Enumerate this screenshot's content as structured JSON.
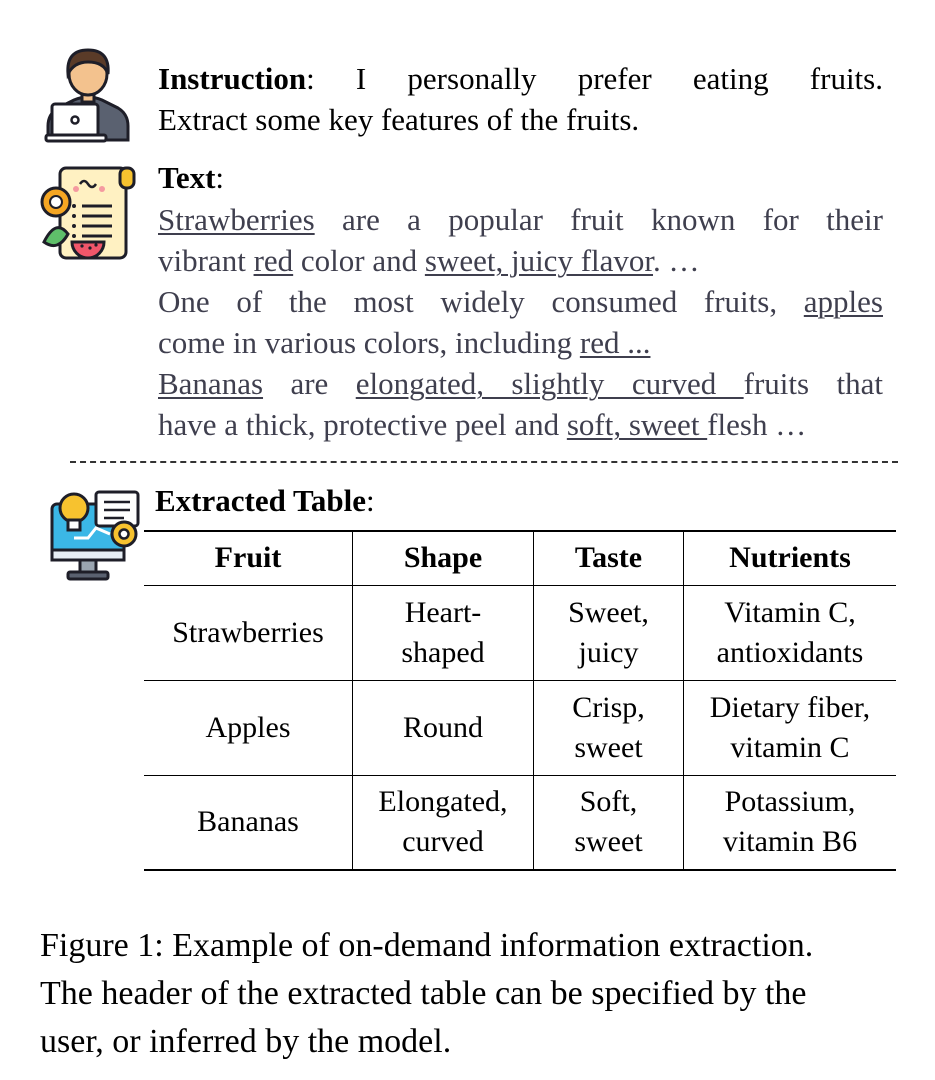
{
  "instruction": {
    "label": "Instruction",
    "line1": ": I personally prefer eating fruits.",
    "line2": "Extract some key features of the fruits."
  },
  "text": {
    "label": "Text",
    "colon": ":",
    "strawberries": "Strawberries",
    "s1": " are a popular fruit known for their",
    "s2a": "vibrant ",
    "s2b": "red",
    "s2c": " color and ",
    "s2d": "sweet, juicy flavor",
    "s2e": ". …",
    "a1a": "One of the most widely consumed fruits, ",
    "a1b": "apples",
    "a2a": "come in various colors, including ",
    "a2b": "red ...",
    "b1a": "Bananas",
    "b1b": " are ",
    "b1c": "elongated, slightly curved ",
    "b1d": "fruits that",
    "b2a": "have a thick, protective peel and ",
    "b2b": "soft, sweet ",
    "b2c": "flesh …"
  },
  "table": {
    "label": "Extracted Table",
    "colon": ":",
    "headers": [
      "Fruit",
      "Shape",
      "Taste",
      "Nutrients"
    ],
    "rows": [
      [
        [
          "Strawberries"
        ],
        [
          "Heart-",
          "shaped"
        ],
        [
          "Sweet,",
          "juicy"
        ],
        [
          "Vitamin C,",
          "antioxidants"
        ]
      ],
      [
        [
          "Apples"
        ],
        [
          "Round"
        ],
        [
          "Crisp,",
          "sweet"
        ],
        [
          "Dietary fiber,",
          "vitamin C"
        ]
      ],
      [
        [
          "Bananas"
        ],
        [
          "Elongated,",
          "curved"
        ],
        [
          "Soft,",
          "sweet"
        ],
        [
          "Potassium,",
          "vitamin B6"
        ]
      ]
    ]
  },
  "caption": {
    "line1": "Figure 1: Example of on-demand information extraction.",
    "line2": "The header of the extracted table can be specified by the",
    "line3": "user, or inferred by the model."
  },
  "icons": {
    "user": "user-laptop-icon",
    "document": "fruit-document-icon",
    "computer": "idea-computer-icon"
  },
  "colors": {
    "skin": "#f3c28e",
    "hair": "#5a3b28",
    "shirt": "#5a6170",
    "paper": "#fff1c2",
    "accent_blue": "#3bb7e6",
    "accent_yellow": "#f7c22f",
    "text_gray": "#3f3f4e"
  }
}
